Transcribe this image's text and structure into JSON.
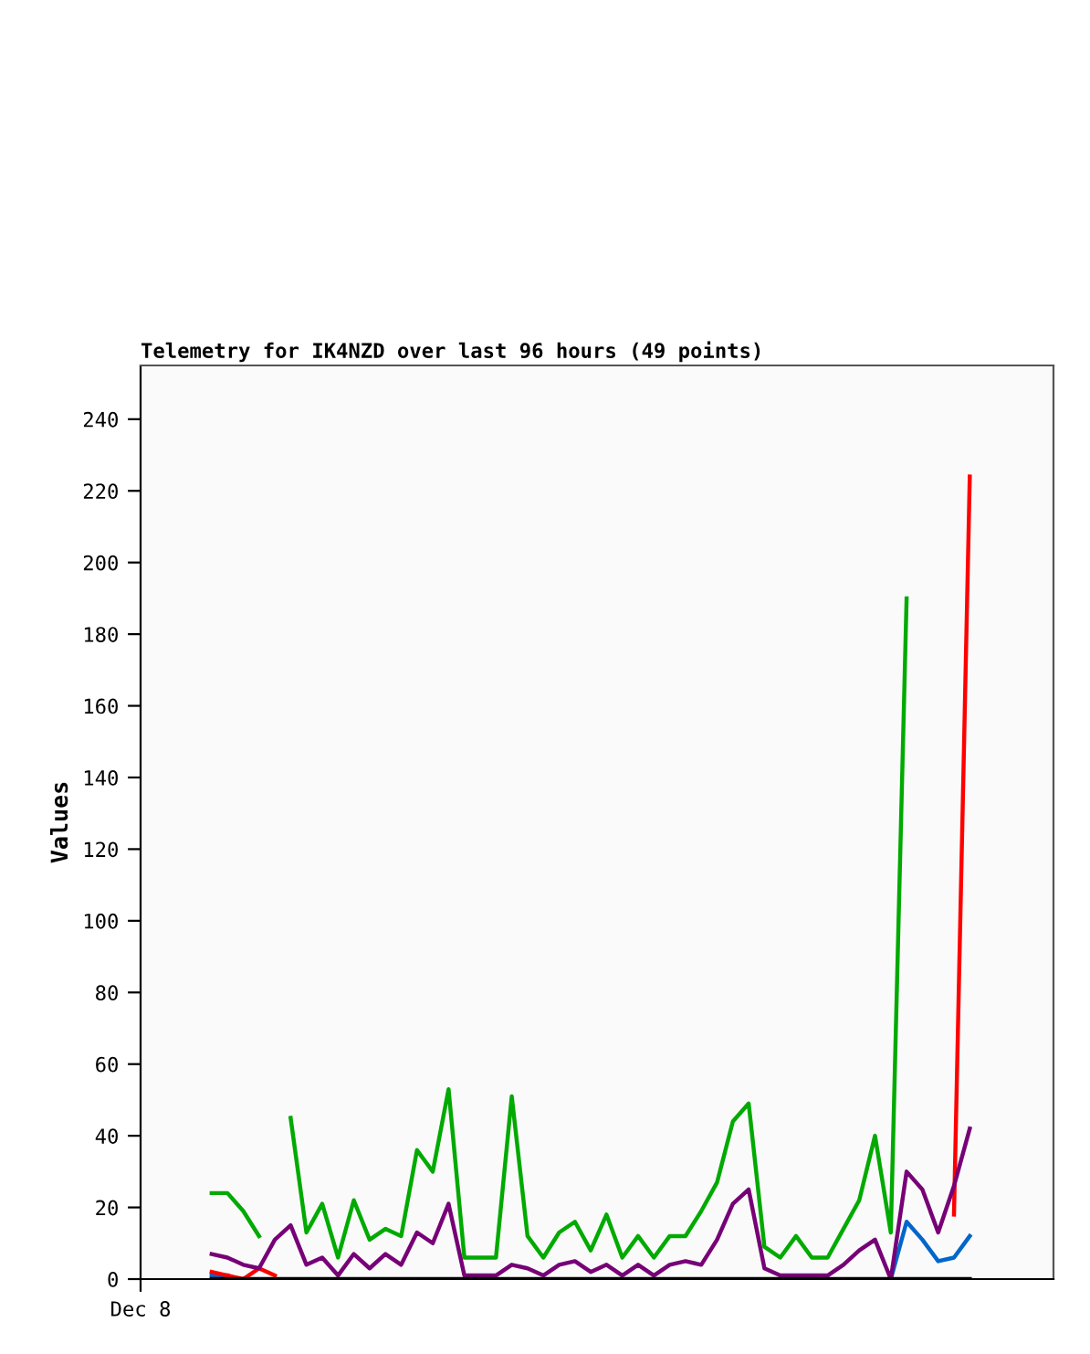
{
  "chart_data": {
    "type": "line",
    "title": "Telemetry for IK4NZD over last 96 hours (49 points)",
    "ylabel": "Values",
    "annotations": [
      "Dec 8"
    ],
    "categories": [
      null,
      null,
      null,
      null,
      null,
      null,
      null,
      null,
      null,
      null,
      null,
      null,
      null,
      null,
      null,
      null,
      null,
      null,
      null,
      null,
      null,
      null,
      null,
      null,
      null,
      null,
      null,
      null,
      null,
      null,
      null,
      null,
      null,
      null,
      null,
      null,
      null,
      null,
      null,
      null,
      null,
      null,
      null,
      null,
      null,
      null,
      null,
      null,
      null
    ],
    "series": [
      {
        "color": "#0066cc",
        "values": [
          1,
          1,
          null,
          null,
          null,
          null,
          null,
          null,
          null,
          null,
          null,
          null,
          null,
          null,
          null,
          null,
          null,
          null,
          null,
          null,
          null,
          null,
          null,
          null,
          null,
          null,
          null,
          null,
          null,
          null,
          null,
          null,
          null,
          null,
          null,
          null,
          null,
          null,
          null,
          null,
          null,
          null,
          null,
          0,
          16,
          11,
          5,
          6,
          12
        ]
      },
      {
        "color": "#ff0000",
        "values": [
          2,
          1,
          0,
          3,
          1,
          null,
          null,
          null,
          null,
          null,
          null,
          null,
          null,
          null,
          null,
          null,
          null,
          null,
          null,
          null,
          null,
          null,
          null,
          null,
          null,
          null,
          null,
          null,
          null,
          null,
          null,
          null,
          null,
          null,
          null,
          null,
          null,
          null,
          null,
          null,
          null,
          null,
          null,
          null,
          null,
          null,
          null,
          18,
          224
        ]
      },
      {
        "color": "#00aa00",
        "values": [
          24,
          24,
          19,
          12,
          null,
          45,
          13,
          21,
          6,
          22,
          11,
          14,
          12,
          36,
          30,
          53,
          6,
          6,
          6,
          51,
          12,
          6,
          13,
          16,
          8,
          18,
          6,
          12,
          6,
          12,
          12,
          19,
          27,
          44,
          49,
          9,
          6,
          12,
          6,
          6,
          14,
          22,
          40,
          13,
          190,
          null,
          null,
          null,
          null
        ]
      },
      {
        "color": "#770077",
        "values": [
          7,
          6,
          4,
          3,
          11,
          15,
          4,
          6,
          1,
          7,
          3,
          7,
          4,
          13,
          10,
          21,
          1,
          1,
          1,
          4,
          3,
          1,
          4,
          5,
          2,
          4,
          1,
          4,
          1,
          4,
          5,
          4,
          11,
          21,
          25,
          3,
          1,
          1,
          1,
          1,
          4,
          8,
          11,
          0,
          30,
          25,
          13,
          26,
          42
        ]
      },
      {
        "color": "#000000",
        "values": [
          0,
          0,
          0,
          0,
          0,
          0,
          0,
          0,
          0,
          0,
          0,
          0,
          0,
          0,
          0,
          0,
          0,
          0,
          0,
          0,
          0,
          0,
          0,
          0,
          0,
          0,
          0,
          0,
          0,
          0,
          0,
          0,
          0,
          0,
          0,
          0,
          0,
          0,
          0,
          0,
          0,
          0,
          0,
          0,
          0,
          0,
          0,
          0,
          0
        ]
      }
    ],
    "ylim": [
      0,
      255
    ],
    "yticks": [
      0,
      20,
      40,
      60,
      80,
      100,
      120,
      140,
      160,
      180,
      200,
      220,
      240
    ],
    "grid": false,
    "legend": false,
    "marker": "none",
    "line_style": "solid"
  }
}
